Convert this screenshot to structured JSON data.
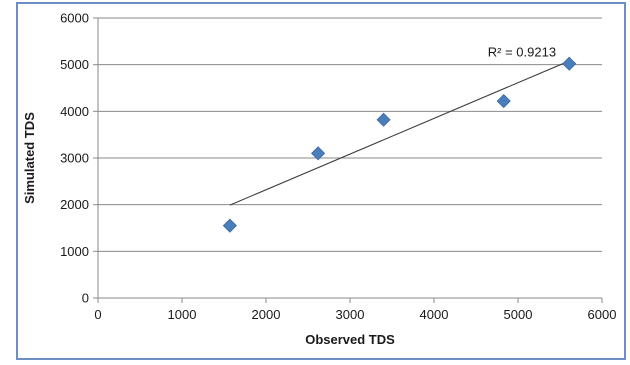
{
  "chart_data": {
    "type": "scatter",
    "title": "",
    "xlabel": "Observed TDS",
    "ylabel": "Simulated TDS",
    "xlim": [
      0,
      6000
    ],
    "ylim": [
      0,
      6000
    ],
    "xticks": [
      "0",
      "1000",
      "2000",
      "3000",
      "4000",
      "5000",
      "6000"
    ],
    "yticks": [
      "0",
      "1000",
      "2000",
      "3000",
      "4000",
      "5000",
      "6000"
    ],
    "grid": "horizontal",
    "legend": "none",
    "series": [
      {
        "marker": "diamond",
        "color": "#4a7ebb",
        "points": [
          {
            "x": 1570,
            "y": 1550
          },
          {
            "x": 2620,
            "y": 3100
          },
          {
            "x": 3400,
            "y": 3820
          },
          {
            "x": 4830,
            "y": 4220
          },
          {
            "x": 5610,
            "y": 5020
          }
        ]
      }
    ],
    "trendline": {
      "type": "linear",
      "from": {
        "x": 1570,
        "y": 1990
      },
      "to": {
        "x": 5610,
        "y": 5080
      },
      "color": "#404040",
      "label": "R² = 0.9213"
    }
  }
}
